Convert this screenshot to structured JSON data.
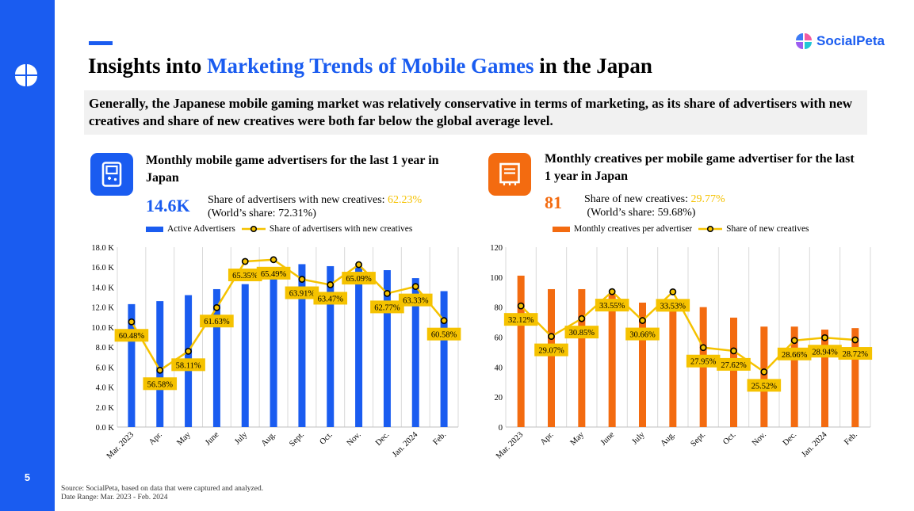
{
  "page_number": "5",
  "brand": {
    "name": "SocialPeta"
  },
  "title": {
    "prefix": "Insights into ",
    "highlight": "Marketing Trends of Mobile Games",
    "suffix": " in the Japan"
  },
  "summary": "Generally, the Japanese mobile gaming market was relatively conservative in terms of marketing, as its share of advertisers with new creatives and share of new creatives were both far below the global average level.",
  "left_panel": {
    "title": "Monthly mobile game advertisers for the last 1 year in Japan",
    "big_number": "14.6K",
    "share_label": "Share of advertisers with new creatives: ",
    "share_value": "62.23%",
    "world_share": "(World’s share: 72.31%)",
    "legend_bar": "Active Advertisers",
    "legend_line": "Share of advertisers with new creatives"
  },
  "right_panel": {
    "title": "Monthly creatives per mobile game advertiser for the last 1 year in Japan",
    "big_number": "81",
    "share_label": "Share of new creatives: ",
    "share_value": "29.77%",
    "world_share": "(World’s share: 59.68%)",
    "legend_bar": "Monthly creatives per advertiser",
    "legend_line": "Share of new creatives"
  },
  "colors": {
    "blue": "#1a5cf0",
    "orange": "#f36b10",
    "gold": "#f5c200"
  },
  "chart_data": [
    {
      "type": "bar",
      "title": "Monthly mobile game advertisers for the last 1 year in Japan",
      "categories": [
        "Mar. 2023",
        "Apr.",
        "May",
        "June",
        "July",
        "Aug.",
        "Sept.",
        "Oct.",
        "Nov.",
        "Dec.",
        "Jan. 2024",
        "Feb."
      ],
      "series": [
        {
          "name": "Active Advertisers",
          "type": "bar",
          "values": [
            12300,
            12600,
            13200,
            13800,
            14300,
            16000,
            16300,
            16100,
            16000,
            15700,
            14900,
            13600
          ]
        },
        {
          "name": "Share of advertisers with new creatives",
          "type": "line",
          "values": [
            60.48,
            56.58,
            58.11,
            61.63,
            65.35,
            65.49,
            63.91,
            63.47,
            65.09,
            62.77,
            63.33,
            60.58
          ],
          "labels": [
            "60.48%",
            "56.58%",
            "58.11%",
            "61.63%",
            "65.35%",
            "65.49%",
            "63.91%",
            "63.47%",
            "65.09%",
            "62.77%",
            "63.33%",
            "60.58%"
          ]
        }
      ],
      "y_ticks": [
        "0.0 K",
        "2.0 K",
        "4.0 K",
        "6.0 K",
        "8.0 K",
        "10.0 K",
        "12.0 K",
        "14.0 K",
        "16.0 K",
        "18.0 K"
      ],
      "ylim": [
        0,
        18000
      ],
      "y2lim": [
        52,
        66.5
      ]
    },
    {
      "type": "bar",
      "title": "Monthly creatives per mobile game advertiser for the last 1 year in Japan",
      "categories": [
        "Mar. 2023",
        "Apr.",
        "May",
        "June",
        "July",
        "Aug.",
        "Sept.",
        "Oct.",
        "Nov.",
        "Dec.",
        "Jan. 2024",
        "Feb."
      ],
      "series": [
        {
          "name": "Monthly creatives per advertiser",
          "type": "bar",
          "values": [
            101,
            92,
            92,
            89,
            83,
            84,
            80,
            73,
            67,
            67,
            65,
            66
          ]
        },
        {
          "name": "Share of new creatives",
          "type": "line",
          "values": [
            32.12,
            29.07,
            30.85,
            33.55,
            30.66,
            33.53,
            27.95,
            27.62,
            25.52,
            28.66,
            28.94,
            28.72
          ],
          "labels": [
            "32.12%",
            "29.07%",
            "30.85%",
            "33.55%",
            "30.66%",
            "33.53%",
            "27.95%",
            "27.62%",
            "25.52%",
            "28.66%",
            "28.94%",
            "28.72%"
          ]
        }
      ],
      "y_ticks": [
        "0",
        "20",
        "40",
        "60",
        "80",
        "100",
        "120"
      ],
      "ylim": [
        0,
        120
      ],
      "y2lim": [
        20,
        38
      ]
    }
  ],
  "source": "Source: SocialPeta, based on data that were captured and analyzed.",
  "date_range": "Date Range: Mar. 2023 - Feb. 2024"
}
